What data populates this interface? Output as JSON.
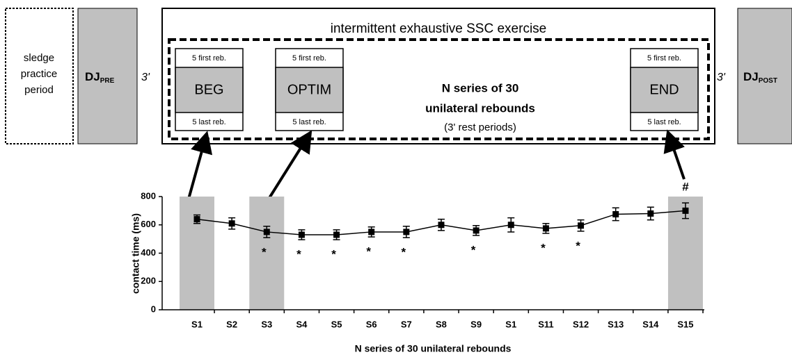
{
  "diagram": {
    "practice_lines": [
      "sledge",
      "practice",
      "period"
    ],
    "dj_pre": {
      "main": "DJ",
      "sub": "PRE"
    },
    "dj_post": {
      "main": "DJ",
      "sub": "POST"
    },
    "rest_before": "3'",
    "rest_after": "3'",
    "exercise_title": "intermittent exhaustive SSC exercise",
    "phases": [
      {
        "top": "5 first reb.",
        "label": "BEG",
        "bottom": "5 last reb."
      },
      {
        "top": "5 first reb.",
        "label": "OPTIM",
        "bottom": "5 last reb."
      },
      {
        "top": "5 first reb.",
        "label": "END",
        "bottom": "5 last reb."
      }
    ],
    "series_line1": "N series of 30",
    "series_line2": "unilateral rebounds",
    "series_line3": "(3' rest periods)"
  },
  "chart_data": {
    "type": "line",
    "ylabel": "contact time (ms)",
    "xlabel": "N series of 30 unilateral rebounds",
    "categories": [
      "S1",
      "S2",
      "S3",
      "S4",
      "S5",
      "S6",
      "S7",
      "S8",
      "S9",
      "S1",
      "S11",
      "S12",
      "S13",
      "S14",
      "S15"
    ],
    "values": [
      640,
      610,
      550,
      530,
      530,
      550,
      550,
      600,
      560,
      600,
      575,
      595,
      675,
      680,
      700
    ],
    "errors": [
      30,
      40,
      40,
      35,
      35,
      35,
      40,
      40,
      35,
      50,
      35,
      40,
      45,
      45,
      55
    ],
    "color": "#000000",
    "highlight_color": "#c0c0c0",
    "highlight": [
      "S1",
      "S3",
      "S15"
    ],
    "annotations": [
      {
        "text": "*",
        "x": "S3"
      },
      {
        "text": "*",
        "x": "S4"
      },
      {
        "text": "*",
        "x": "S5"
      },
      {
        "text": "*",
        "x": "S6"
      },
      {
        "text": "*",
        "x": "S7"
      },
      {
        "text": "*",
        "x": "S9"
      },
      {
        "text": "*",
        "x": "S11"
      },
      {
        "text": "*",
        "x": "S12"
      },
      {
        "text": "#",
        "x": "S15"
      }
    ],
    "ylim": [
      0,
      800
    ],
    "yticks": [
      0,
      200,
      400,
      600,
      800
    ]
  }
}
